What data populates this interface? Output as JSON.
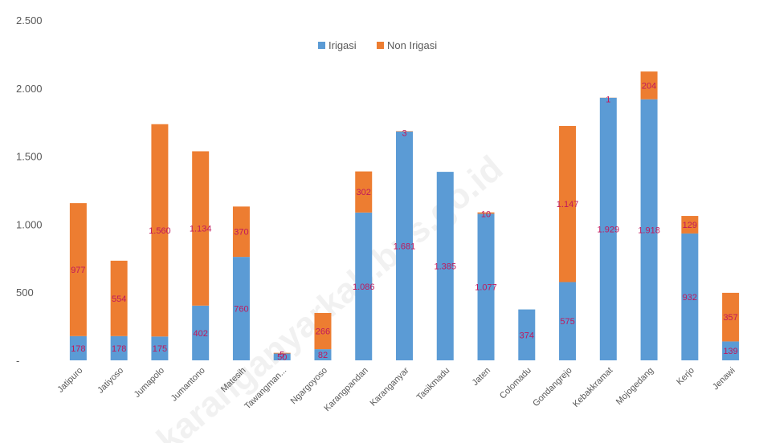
{
  "chart_data": {
    "type": "bar",
    "stacked": true,
    "categories": [
      "Jatipuro",
      "Jatiyoso",
      "Jumapolo",
      "Jumantono",
      "Matesih",
      "Tawangman...",
      "Ngargoyoso",
      "Karangpandan",
      "Karanganyar",
      "Tasikmadu",
      "Jaten",
      "Colomadu",
      "Gondangrejo",
      "Kebakkramat",
      "Mojogedang",
      "Kerjo",
      "Jenawi"
    ],
    "series": [
      {
        "name": "Irigasi",
        "color": "#5B9BD5",
        "values": [
          178,
          178,
          175,
          402,
          760,
          50,
          82,
          1086,
          1681,
          1385,
          1077,
          374,
          575,
          1929,
          1918,
          932,
          139
        ],
        "labels": [
          "178",
          "178",
          "175",
          "402",
          "760",
          "50",
          "82",
          "1.086",
          "1.681",
          "1.385",
          "1.077",
          "374",
          "575",
          "1.929",
          "1.918",
          "932",
          "139"
        ]
      },
      {
        "name": "Non Irigasi",
        "color": "#ED7D31",
        "values": [
          977,
          554,
          1560,
          1134,
          370,
          5,
          266,
          302,
          3,
          0,
          10,
          0,
          1147,
          1,
          204,
          129,
          357
        ],
        "labels": [
          "977",
          "554",
          "1.560",
          "1.134",
          "370",
          "5",
          "266",
          "302",
          "3",
          "",
          "10",
          "",
          "1.147",
          "1",
          "204",
          "129",
          "357"
        ]
      }
    ],
    "yticks": [
      "-",
      "500",
      "1.000",
      "1.500",
      "2.000",
      "2.500"
    ],
    "ylim": [
      0,
      2500
    ],
    "grid": false,
    "legend_position": "top"
  },
  "watermark": "karanganyarkab.bps.go.id"
}
